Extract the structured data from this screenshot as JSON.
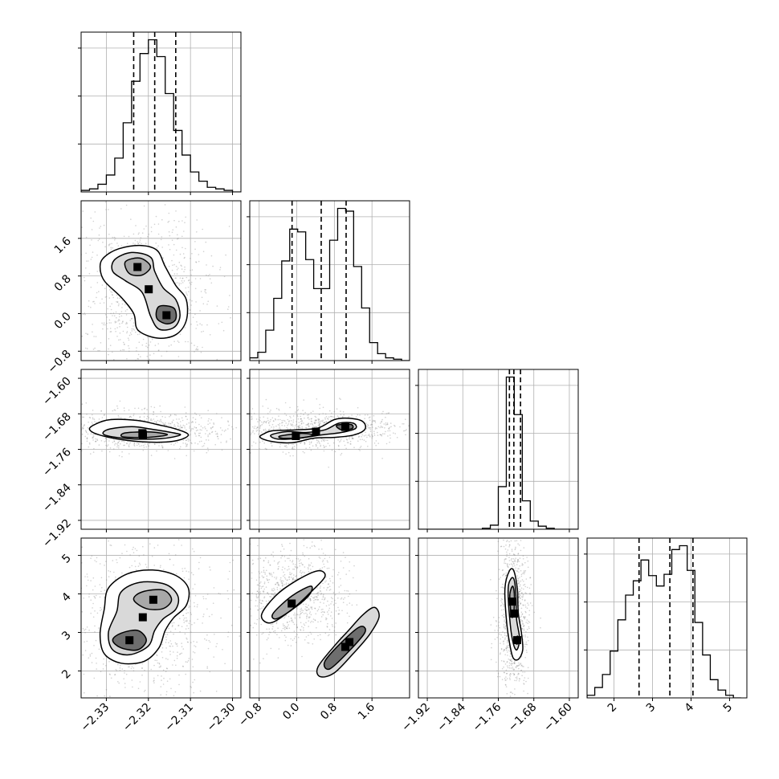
{
  "chart_data": {
    "type": "corner",
    "title": "",
    "grid": true,
    "parameters": [
      {
        "index": 0,
        "range": [
          -2.336,
          -2.298
        ],
        "ticks": [
          -2.33,
          -2.32,
          -2.31,
          -2.3
        ],
        "tick_labels": [
          "−2.33",
          "−2.32",
          "−2.31",
          "−2.30"
        ],
        "quantiles": [
          -2.3235,
          -2.3185,
          -2.3135
        ]
      },
      {
        "index": 1,
        "range": [
          -1.0,
          2.4
        ],
        "ticks": [
          -0.8,
          0.0,
          0.8,
          1.6
        ],
        "tick_labels": [
          "−0.8",
          "0.0",
          "0.8",
          "1.6"
        ],
        "quantiles": [
          -0.1,
          0.52,
          1.05
        ]
      },
      {
        "index": 2,
        "range": [
          -1.94,
          -1.58
        ],
        "ticks": [
          -1.92,
          -1.84,
          -1.76,
          -1.68,
          -1.6
        ],
        "tick_labels": [
          "−1.92",
          "−1.84",
          "−1.76",
          "−1.68",
          "−1.60"
        ],
        "quantiles": [
          -1.735,
          -1.725,
          -1.71
        ]
      },
      {
        "index": 3,
        "range": [
          1.3,
          5.45
        ],
        "ticks": [
          2,
          3,
          4,
          5
        ],
        "tick_labels": [
          "2",
          "3",
          "4",
          "5"
        ],
        "quantiles": [
          2.65,
          3.45,
          4.05
        ]
      }
    ],
    "histograms": [
      {
        "param": 0,
        "bin_edges": [
          -2.336,
          -2.334,
          -2.332,
          -2.33,
          -2.328,
          -2.326,
          -2.324,
          -2.322,
          -2.32,
          -2.318,
          -2.316,
          -2.314,
          -2.312,
          -2.31,
          -2.308,
          -2.306,
          -2.304,
          -2.302,
          -2.3,
          -2.298
        ],
        "counts": [
          1,
          2,
          5,
          11,
          22,
          45,
          72,
          90,
          99,
          88,
          64,
          40,
          24,
          13,
          7,
          3,
          2,
          1,
          0
        ]
      },
      {
        "param": 1,
        "bin_edges": [
          -1.0,
          -0.83,
          -0.66,
          -0.49,
          -0.32,
          -0.15,
          0.02,
          0.19,
          0.36,
          0.53,
          0.7,
          0.87,
          1.04,
          1.21,
          1.38,
          1.55,
          1.72,
          1.89,
          2.06,
          2.23,
          2.4
        ],
        "counts": [
          2,
          6,
          22,
          45,
          72,
          95,
          93,
          73,
          52,
          52,
          87,
          110,
          108,
          68,
          38,
          13,
          5,
          2,
          1,
          0
        ]
      },
      {
        "param": 2,
        "bin_edges": [
          -1.94,
          -1.922,
          -1.904,
          -1.886,
          -1.868,
          -1.85,
          -1.832,
          -1.814,
          -1.796,
          -1.778,
          -1.76,
          -1.742,
          -1.724,
          -1.706,
          -1.688,
          -1.67,
          -1.652,
          -1.634,
          -1.616,
          -1.598,
          -1.58
        ],
        "counts": [
          0,
          0,
          0,
          0,
          0,
          0,
          0,
          0,
          1,
          4,
          42,
          150,
          113,
          28,
          8,
          3,
          1,
          0,
          0,
          0
        ]
      },
      {
        "param": 3,
        "bin_edges": [
          1.3,
          1.5,
          1.7,
          1.9,
          2.1,
          2.3,
          2.5,
          2.7,
          2.9,
          3.1,
          3.3,
          3.5,
          3.7,
          3.9,
          4.1,
          4.3,
          4.5,
          4.7,
          4.9,
          5.1,
          5.3
        ],
        "counts": [
          2,
          8,
          18,
          36,
          60,
          79,
          90,
          106,
          94,
          86,
          95,
          114,
          117,
          98,
          58,
          33,
          14,
          6,
          2,
          0
        ]
      }
    ],
    "density_panels": [
      {
        "x_param": 0,
        "y_param": 1,
        "levels": [
          [
            [
              -2.3305,
              1.2
            ],
            [
              -2.327,
              1.38
            ],
            [
              -2.322,
              1.45
            ],
            [
              -2.318,
              1.35
            ],
            [
              -2.316,
              1.0
            ],
            [
              -2.3135,
              0.6
            ],
            [
              -2.311,
              0.3
            ],
            [
              -2.311,
              -0.15
            ],
            [
              -2.3135,
              -0.45
            ],
            [
              -2.318,
              -0.52
            ],
            [
              -2.3225,
              -0.35
            ],
            [
              -2.3235,
              0.0
            ],
            [
              -2.3265,
              0.35
            ],
            [
              -2.3305,
              0.7
            ],
            [
              -2.3315,
              1.0
            ]
          ],
          [
            [
              -2.328,
              1.15
            ],
            [
              -2.324,
              1.3
            ],
            [
              -2.3195,
              1.2
            ],
            [
              -2.3185,
              0.9
            ],
            [
              -2.3165,
              0.55
            ],
            [
              -2.3135,
              0.3
            ],
            [
              -2.3125,
              -0.05
            ],
            [
              -2.314,
              -0.3
            ],
            [
              -2.3175,
              -0.33
            ],
            [
              -2.3195,
              -0.05
            ],
            [
              -2.3215,
              0.45
            ],
            [
              -2.3255,
              0.7
            ],
            [
              -2.3285,
              0.9
            ]
          ],
          [
            [
              -2.3255,
              1.1
            ],
            [
              -2.322,
              1.18
            ],
            [
              -2.3195,
              1.0
            ],
            [
              -2.3215,
              0.82
            ],
            [
              -2.3245,
              0.85
            ]
          ],
          [
            [
              -2.3175,
              0.15
            ],
            [
              -2.314,
              0.12
            ],
            [
              -2.3135,
              -0.12
            ],
            [
              -2.3155,
              -0.22
            ],
            [
              -2.318,
              -0.1
            ]
          ]
        ]
      },
      {
        "x_param": 0,
        "y_param": 2,
        "levels": [
          [
            [
              -2.3325,
              -1.703
            ],
            [
              -2.329,
              -1.693
            ],
            [
              -2.3225,
              -1.695
            ],
            [
              -2.318,
              -1.704
            ],
            [
              -2.3135,
              -1.714
            ],
            [
              -2.3105,
              -1.727
            ],
            [
              -2.313,
              -1.74
            ],
            [
              -2.318,
              -1.744
            ],
            [
              -2.325,
              -1.74
            ],
            [
              -2.3315,
              -1.728
            ],
            [
              -2.334,
              -1.715
            ]
          ],
          [
            [
              -2.3295,
              -1.715
            ],
            [
              -2.324,
              -1.709
            ],
            [
              -2.319,
              -1.715
            ],
            [
              -2.314,
              -1.723
            ],
            [
              -2.3125,
              -1.728
            ],
            [
              -2.317,
              -1.736
            ],
            [
              -2.325,
              -1.736
            ],
            [
              -2.3305,
              -1.727
            ]
          ],
          [
            [
              -2.3255,
              -1.723
            ],
            [
              -2.3195,
              -1.721
            ],
            [
              -2.3155,
              -1.727
            ],
            [
              -2.32,
              -1.733
            ],
            [
              -2.326,
              -1.732
            ]
          ]
        ]
      },
      {
        "x_param": 1,
        "y_param": 2,
        "levels": [
          [
            [
              -0.7,
              -1.725
            ],
            [
              -0.5,
              -1.718
            ],
            [
              0.0,
              -1.716
            ],
            [
              0.45,
              -1.712
            ],
            [
              0.8,
              -1.693
            ],
            [
              1.1,
              -1.69
            ],
            [
              1.4,
              -1.697
            ],
            [
              1.45,
              -1.715
            ],
            [
              1.2,
              -1.728
            ],
            [
              0.8,
              -1.733
            ],
            [
              0.35,
              -1.735
            ],
            [
              -0.1,
              -1.745
            ],
            [
              -0.55,
              -1.742
            ],
            [
              -0.78,
              -1.733
            ]
          ],
          [
            [
              -0.55,
              -1.728
            ],
            [
              -0.2,
              -1.72
            ],
            [
              0.2,
              -1.722
            ],
            [
              0.6,
              -1.716
            ],
            [
              0.9,
              -1.701
            ],
            [
              1.2,
              -1.701
            ],
            [
              1.25,
              -1.713
            ],
            [
              0.95,
              -1.722
            ],
            [
              0.5,
              -1.728
            ],
            [
              0.05,
              -1.735
            ],
            [
              -0.4,
              -1.737
            ]
          ],
          [
            [
              -0.35,
              -1.73
            ],
            [
              0.1,
              -1.724
            ],
            [
              0.35,
              -1.728
            ],
            [
              0.1,
              -1.734
            ],
            [
              -0.3,
              -1.735
            ]
          ],
          [
            [
              0.85,
              -1.706
            ],
            [
              1.15,
              -1.704
            ],
            [
              1.18,
              -1.713
            ],
            [
              0.95,
              -1.716
            ]
          ]
        ]
      },
      {
        "x_param": 0,
        "y_param": 3,
        "levels": [
          [
            [
              -2.3295,
              4.15
            ],
            [
              -2.325,
              4.52
            ],
            [
              -2.319,
              4.62
            ],
            [
              -2.3135,
              4.48
            ],
            [
              -2.3105,
              4.15
            ],
            [
              -2.311,
              3.7
            ],
            [
              -2.314,
              3.38
            ],
            [
              -2.316,
              3.05
            ],
            [
              -2.3175,
              2.6
            ],
            [
              -2.321,
              2.25
            ],
            [
              -2.3265,
              2.2
            ],
            [
              -2.3305,
              2.45
            ],
            [
              -2.3315,
              2.95
            ],
            [
              -2.3305,
              3.6
            ]
          ],
          [
            [
              -2.3265,
              4.05
            ],
            [
              -2.322,
              4.3
            ],
            [
              -2.316,
              4.25
            ],
            [
              -2.313,
              3.95
            ],
            [
              -2.3135,
              3.6
            ],
            [
              -2.3165,
              3.35
            ],
            [
              -2.3185,
              3.05
            ],
            [
              -2.32,
              2.65
            ],
            [
              -2.3245,
              2.42
            ],
            [
              -2.3285,
              2.55
            ],
            [
              -2.3295,
              3.0
            ],
            [
              -2.3275,
              3.55
            ]
          ],
          [
            [
              -2.3215,
              4.05
            ],
            [
              -2.3165,
              4.1
            ],
            [
              -2.3145,
              3.85
            ],
            [
              -2.3165,
              3.62
            ],
            [
              -2.3205,
              3.62
            ],
            [
              -2.3235,
              3.85
            ]
          ],
          [
            [
              -2.3265,
              2.98
            ],
            [
              -2.3225,
              3.05
            ],
            [
              -2.3205,
              2.8
            ],
            [
              -2.3225,
              2.55
            ],
            [
              -2.3265,
              2.6
            ],
            [
              -2.3285,
              2.8
            ]
          ]
        ]
      },
      {
        "x_param": 1,
        "y_param": 3,
        "levels": [
          [
            [
              -0.75,
              3.45
            ],
            [
              -0.45,
              3.95
            ],
            [
              0.0,
              4.35
            ],
            [
              0.45,
              4.6
            ],
            [
              0.6,
              4.45
            ],
            [
              0.3,
              4.05
            ],
            [
              -0.1,
              3.6
            ],
            [
              -0.55,
              3.25
            ]
          ],
          [
            [
              0.45,
              2.1
            ],
            [
              0.8,
              2.65
            ],
            [
              1.1,
              3.05
            ],
            [
              1.4,
              3.45
            ],
            [
              1.65,
              3.65
            ],
            [
              1.75,
              3.4
            ],
            [
              1.55,
              2.95
            ],
            [
              1.2,
              2.45
            ],
            [
              0.8,
              1.95
            ],
            [
              0.5,
              1.85
            ]
          ],
          [
            [
              -0.5,
              3.5
            ],
            [
              -0.1,
              3.95
            ],
            [
              0.3,
              4.2
            ],
            [
              0.25,
              3.95
            ],
            [
              -0.15,
              3.55
            ],
            [
              -0.45,
              3.35
            ]
          ],
          [
            [
              0.6,
              2.25
            ],
            [
              1.0,
              2.8
            ],
            [
              1.35,
              3.15
            ],
            [
              1.45,
              3.0
            ],
            [
              1.1,
              2.5
            ],
            [
              0.7,
              2.05
            ]
          ]
        ]
      },
      {
        "x_param": 2,
        "y_param": 3,
        "levels": [
          [
            [
              -1.745,
              4.15
            ],
            [
              -1.735,
              4.6
            ],
            [
              -1.725,
              4.6
            ],
            [
              -1.717,
              4.1
            ],
            [
              -1.715,
              3.5
            ],
            [
              -1.708,
              3.0
            ],
            [
              -1.705,
              2.55
            ],
            [
              -1.715,
              2.3
            ],
            [
              -1.727,
              2.35
            ],
            [
              -1.735,
              2.75
            ],
            [
              -1.742,
              3.35
            ]
          ],
          [
            [
              -1.738,
              4.1
            ],
            [
              -1.731,
              4.4
            ],
            [
              -1.724,
              4.35
            ],
            [
              -1.72,
              3.9
            ],
            [
              -1.719,
              3.35
            ],
            [
              -1.712,
              2.85
            ],
            [
              -1.718,
              2.55
            ],
            [
              -1.726,
              2.7
            ],
            [
              -1.733,
              3.2
            ]
          ],
          [
            [
              -1.734,
              4.0
            ],
            [
              -1.728,
              4.2
            ],
            [
              -1.724,
              4.0
            ],
            [
              -1.725,
              3.5
            ],
            [
              -1.73,
              3.4
            ],
            [
              -1.733,
              3.7
            ]
          ],
          [
            [
              -1.72,
              2.85
            ],
            [
              -1.716,
              2.9
            ],
            [
              -1.715,
              2.75
            ],
            [
              -1.719,
              2.7
            ]
          ]
        ]
      }
    ]
  }
}
